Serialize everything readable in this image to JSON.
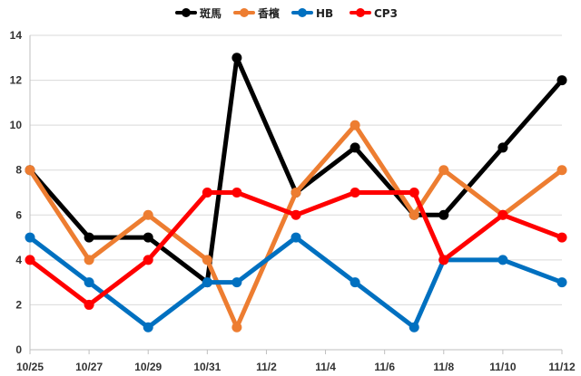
{
  "chart_data": {
    "type": "line",
    "title": "",
    "xlabel": "",
    "ylabel": "",
    "legend_position": "top",
    "grid": true,
    "ylim": [
      0,
      14
    ],
    "yticks": [
      0,
      2,
      4,
      6,
      8,
      10,
      12,
      14
    ],
    "x_tick_labels": [
      "10/25",
      "10/27",
      "10/29",
      "10/31",
      "11/2",
      "11/4",
      "11/6",
      "11/8",
      "11/10",
      "11/12"
    ],
    "x": [
      "10/25",
      "10/27",
      "10/29",
      "10/31",
      "11/1",
      "11/3",
      "11/5",
      "11/7",
      "11/8",
      "11/10",
      "11/12"
    ],
    "series": [
      {
        "name": "斑馬",
        "color": "#000000",
        "values": [
          8,
          5,
          5,
          3,
          13,
          7,
          9,
          6,
          6,
          9,
          12
        ]
      },
      {
        "name": "香檳",
        "color": "#ED7D31",
        "values": [
          8,
          4,
          6,
          4,
          1,
          7,
          10,
          6,
          8,
          6,
          8
        ]
      },
      {
        "name": "HB",
        "color": "#0070C0",
        "values": [
          5,
          3,
          1,
          3,
          3,
          5,
          3,
          1,
          4,
          4,
          3
        ]
      },
      {
        "name": "CP3",
        "color": "#FF0000",
        "values": [
          4,
          2,
          4,
          7,
          7,
          6,
          7,
          7,
          4,
          6,
          5
        ]
      }
    ]
  }
}
